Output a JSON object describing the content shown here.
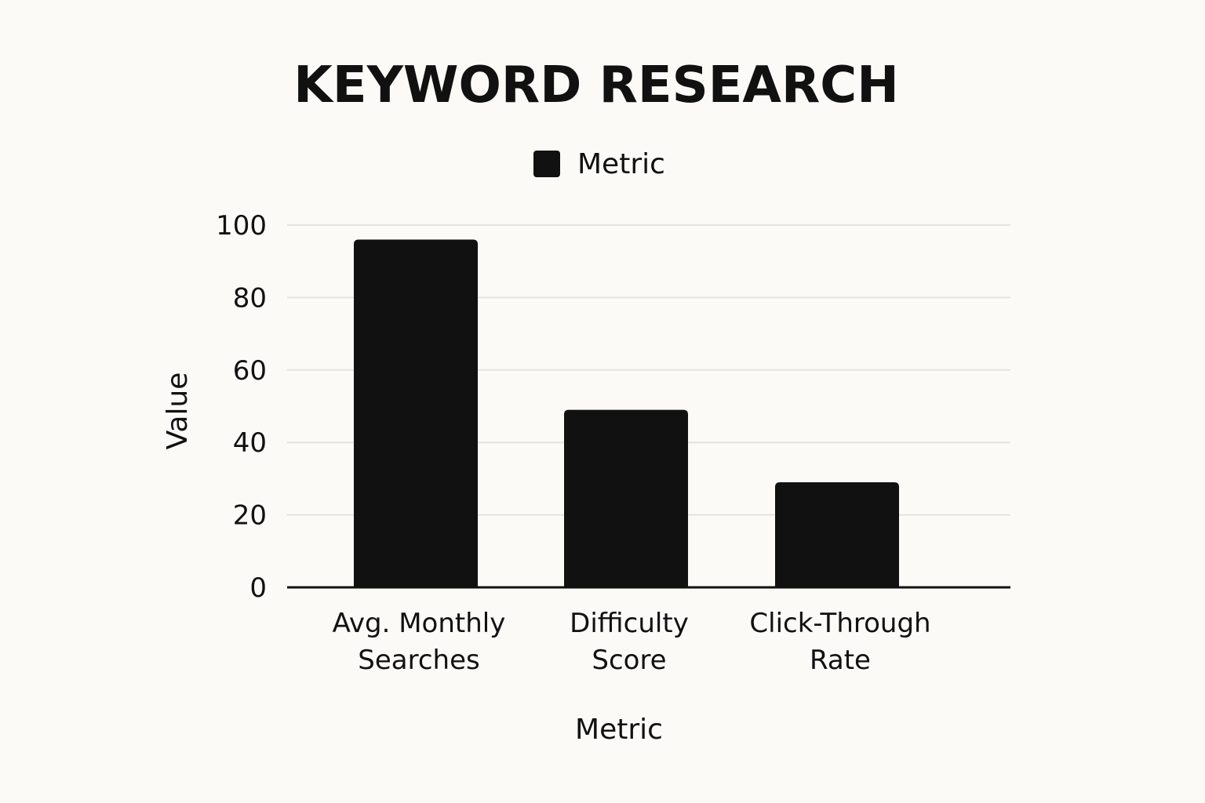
{
  "chart_data": {
    "type": "bar",
    "title": "KEYWORD RESEARCH",
    "xlabel": "Metric",
    "ylabel": "Value",
    "categories": [
      [
        "Avg. Monthly",
        "Searches"
      ],
      [
        "Difficulty",
        "Score"
      ],
      [
        "Click-Through",
        "Rate"
      ]
    ],
    "series": [
      {
        "name": "Metric",
        "values": [
          96,
          49,
          29
        ]
      }
    ],
    "ylim": [
      0,
      100
    ],
    "yticks": [
      0,
      20,
      40,
      60,
      80,
      100
    ],
    "grid": true,
    "legend_position": "top-center",
    "colors": {
      "bar": "#111111",
      "grid": "#e3e3e0",
      "axis": "#111111",
      "background": "#fbfaf7"
    }
  }
}
